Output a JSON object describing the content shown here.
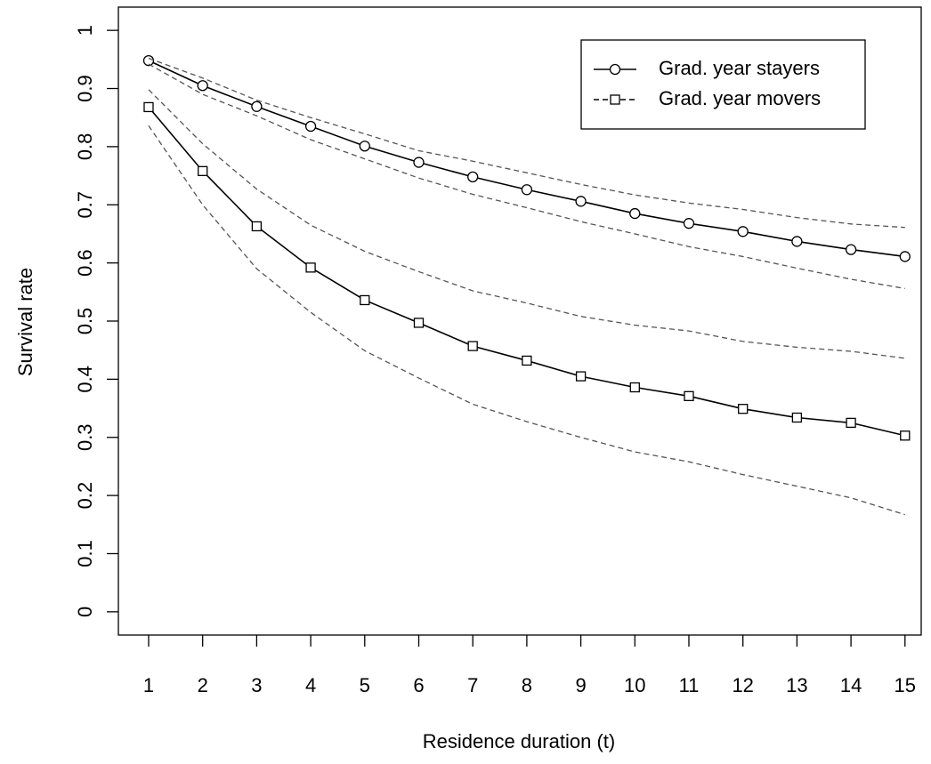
{
  "chart_data": {
    "type": "line",
    "x_label": "Residence duration (t)",
    "y_label": "Survival rate",
    "x": [
      1,
      2,
      3,
      4,
      5,
      6,
      7,
      8,
      9,
      10,
      11,
      12,
      13,
      14,
      15
    ],
    "xlim": [
      0.44,
      15.3
    ],
    "xticks": [
      1,
      2,
      3,
      4,
      5,
      6,
      7,
      8,
      9,
      10,
      11,
      12,
      13,
      14,
      15
    ],
    "ylim": [
      -0.04,
      1.04
    ],
    "yticks": [
      0,
      0.1,
      0.2,
      0.3,
      0.4,
      0.5,
      0.6,
      0.7,
      0.8,
      0.9,
      1
    ],
    "legend": "top-right",
    "series": [
      {
        "name": "Grad. year stayers",
        "color": "#000000",
        "dash": false,
        "marker": "circle",
        "values": [
          0.948,
          0.905,
          0.869,
          0.835,
          0.801,
          0.773,
          0.748,
          0.726,
          0.706,
          0.685,
          0.668,
          0.654,
          0.637,
          0.623,
          0.611
        ]
      },
      {
        "name": "Grad. year movers",
        "color": "#000000",
        "dash": false,
        "legend_dash": true,
        "marker": "square",
        "values": [
          0.868,
          0.758,
          0.663,
          0.592,
          0.536,
          0.497,
          0.457,
          0.432,
          0.405,
          0.386,
          0.371,
          0.349,
          0.334,
          0.325,
          0.303
        ]
      },
      {
        "color": "#555555",
        "dash": true,
        "values": [
          0.952,
          0.918,
          0.88,
          0.85,
          0.822,
          0.793,
          0.775,
          0.755,
          0.735,
          0.717,
          0.703,
          0.692,
          0.678,
          0.667,
          0.661
        ]
      },
      {
        "color": "#555555",
        "dash": true,
        "values": [
          0.942,
          0.89,
          0.853,
          0.812,
          0.779,
          0.746,
          0.718,
          0.695,
          0.671,
          0.65,
          0.628,
          0.611,
          0.591,
          0.572,
          0.556
        ]
      },
      {
        "color": "#555555",
        "dash": true,
        "values": [
          0.898,
          0.805,
          0.727,
          0.665,
          0.62,
          0.585,
          0.552,
          0.531,
          0.508,
          0.493,
          0.483,
          0.465,
          0.455,
          0.448,
          0.436
        ]
      },
      {
        "color": "#555555",
        "dash": true,
        "values": [
          0.836,
          0.7,
          0.59,
          0.515,
          0.449,
          0.402,
          0.357,
          0.327,
          0.3,
          0.275,
          0.258,
          0.236,
          0.216,
          0.196,
          0.167
        ]
      }
    ]
  }
}
